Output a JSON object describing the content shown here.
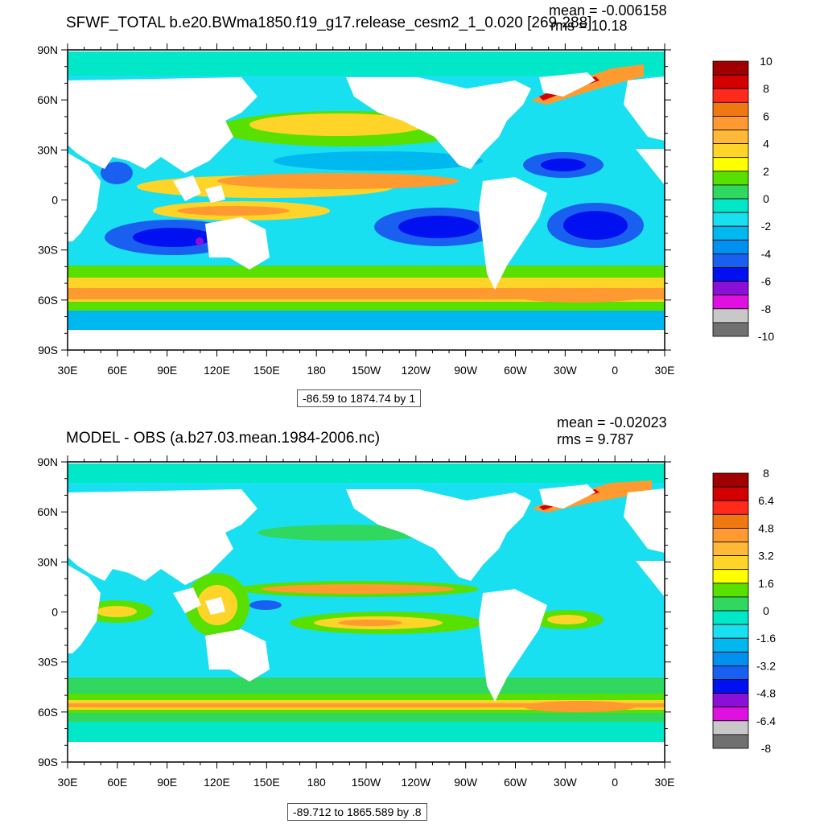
{
  "top": {
    "title": "SFWF_TOTAL b.e20.BWma1850.f19_g17.release_cesm2_1_0.020 [269-288]",
    "mean_label": "mean = -0.006158",
    "rms_label": "rms = 10.18",
    "range_label": "-86.59 to 1874.74 by 1",
    "colorbar": {
      "labels": [
        "10",
        "8",
        "6",
        "4",
        "2",
        "0",
        "-2",
        "-4",
        "-6",
        "-8",
        "-10"
      ],
      "colors": [
        "#a00000",
        "#d40000",
        "#ff2a1a",
        "#f07810",
        "#ff9a30",
        "#ffb838",
        "#ffd428",
        "#ffff00",
        "#58e000",
        "#30d860",
        "#00e8c8",
        "#18e0f0",
        "#00b8f0",
        "#0090f0",
        "#1a60f0",
        "#0010f0",
        "#8a10d8",
        "#e010e0",
        "#c8c8c8",
        "#707070"
      ]
    }
  },
  "bottom": {
    "title": "MODEL - OBS (a.b27.03.mean.1984-2006.nc)",
    "mean_label": "mean = -0.02023",
    "rms_label": "rms = 9.787",
    "range_label": "-89.712 to 1865.589 by .8",
    "colorbar": {
      "labels": [
        "8",
        "6.4",
        "4.8",
        "3.2",
        "1.6",
        "0",
        "-1.6",
        "-3.2",
        "-4.8",
        "-6.4",
        "-8"
      ],
      "colors": [
        "#a00000",
        "#d40000",
        "#ff2a1a",
        "#f07810",
        "#ff9a30",
        "#ffb838",
        "#ffd428",
        "#ffff00",
        "#58e000",
        "#30d860",
        "#00e8c8",
        "#18e0f0",
        "#00b8f0",
        "#0090f0",
        "#1a60f0",
        "#0010f0",
        "#8a10d8",
        "#e010e0",
        "#c8c8c8",
        "#707070"
      ]
    }
  },
  "axes": {
    "lat_labels": [
      "90N",
      "60N",
      "30N",
      "0",
      "30S",
      "60S",
      "90S"
    ],
    "lon_labels": [
      "30E",
      "60E",
      "90E",
      "120E",
      "150E",
      "180",
      "150W",
      "120W",
      "90W",
      "60W",
      "30W",
      "0",
      "30E"
    ]
  }
}
